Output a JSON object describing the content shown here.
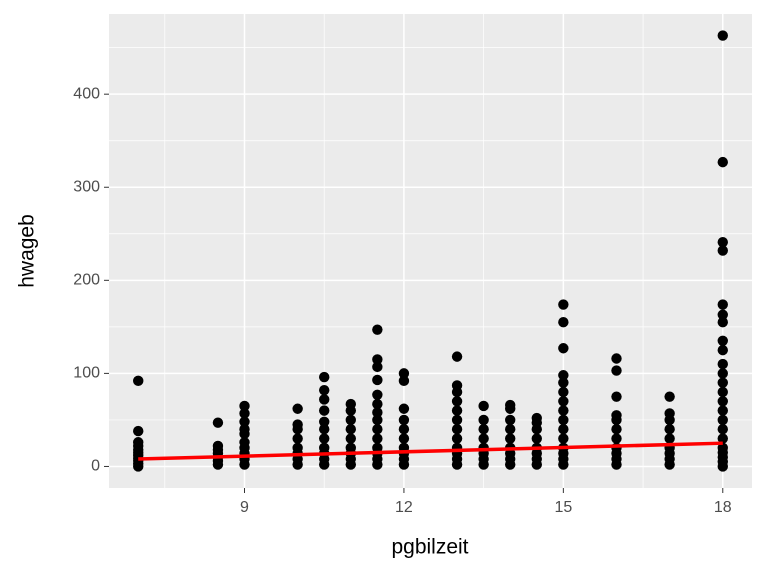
{
  "chart_data": {
    "type": "scatter",
    "x_label": "pgbilzeit",
    "y_label": "hwageb",
    "x": [
      7,
      7,
      7,
      7,
      7,
      7,
      7,
      7,
      7,
      7,
      7,
      8.5,
      8.5,
      8.5,
      8.5,
      8.5,
      8.5,
      8.5,
      9,
      9,
      9,
      9,
      9,
      9,
      9,
      9,
      9,
      9,
      10,
      10,
      10,
      10,
      10,
      10,
      10,
      10,
      10.5,
      10.5,
      10.5,
      10.5,
      10.5,
      10.5,
      10.5,
      10.5,
      10.5,
      10.5,
      10.5,
      11,
      11,
      11,
      11,
      11,
      11,
      11,
      11,
      11,
      11.5,
      11.5,
      11.5,
      11.5,
      11.5,
      11.5,
      11.5,
      11.5,
      11.5,
      11.5,
      11.5,
      11.5,
      11.5,
      11.5,
      12,
      12,
      12,
      12,
      12,
      12,
      12,
      12,
      12,
      12,
      13,
      13,
      13,
      13,
      13,
      13,
      13,
      13,
      13,
      13,
      13,
      13,
      13.5,
      13.5,
      13.5,
      13.5,
      13.5,
      13.5,
      13.5,
      13.5,
      14,
      14,
      14,
      14,
      14,
      14,
      14,
      14,
      14,
      14.5,
      14.5,
      14.5,
      14.5,
      14.5,
      14.5,
      14.5,
      14.5,
      15,
      15,
      15,
      15,
      15,
      15,
      15,
      15,
      15,
      15,
      15,
      15,
      15,
      15,
      15,
      16,
      16,
      16,
      16,
      16,
      16,
      16,
      16,
      16,
      16,
      16,
      17,
      17,
      17,
      17,
      17,
      17,
      17,
      17,
      17,
      18,
      18,
      18,
      18,
      18,
      18,
      18,
      18,
      18,
      18,
      18,
      18,
      18,
      18,
      18,
      18,
      18,
      18,
      18,
      18,
      18,
      18,
      18
    ],
    "values": [
      0,
      3,
      6,
      9,
      12,
      15,
      18,
      22,
      26,
      38,
      92,
      2,
      6,
      10,
      14,
      18,
      22,
      47,
      2,
      8,
      14,
      20,
      26,
      35,
      40,
      48,
      57,
      65,
      2,
      8,
      14,
      20,
      30,
      40,
      45,
      62,
      2,
      8,
      14,
      20,
      30,
      40,
      48,
      60,
      72,
      82,
      96,
      2,
      8,
      14,
      20,
      30,
      40,
      50,
      60,
      67,
      2,
      8,
      14,
      20,
      30,
      40,
      50,
      58,
      67,
      77,
      93,
      107,
      115,
      147,
      2,
      8,
      14,
      20,
      30,
      40,
      50,
      62,
      92,
      100,
      2,
      8,
      14,
      20,
      30,
      40,
      50,
      60,
      70,
      80,
      87,
      118,
      2,
      8,
      14,
      20,
      30,
      40,
      50,
      65,
      2,
      8,
      14,
      20,
      30,
      40,
      50,
      62,
      66,
      2,
      8,
      14,
      20,
      30,
      40,
      47,
      52,
      2,
      8,
      14,
      20,
      30,
      40,
      50,
      60,
      70,
      80,
      90,
      98,
      127,
      155,
      174,
      2,
      8,
      14,
      20,
      30,
      40,
      50,
      55,
      75,
      103,
      116,
      2,
      8,
      14,
      20,
      30,
      40,
      50,
      57,
      75,
      0,
      5,
      10,
      15,
      20,
      30,
      40,
      50,
      60,
      70,
      80,
      90,
      100,
      110,
      125,
      135,
      155,
      163,
      174,
      232,
      241,
      327,
      463
    ],
    "color": "#000000",
    "trend": {
      "x": [
        7,
        18
      ],
      "values": [
        8,
        25
      ],
      "color": "#ff0000"
    },
    "xlim": [
      6.45,
      18.55
    ],
    "xticks": [
      9,
      12,
      15,
      18
    ],
    "xminor": [
      7.5,
      10.5,
      13.5,
      16.5
    ],
    "ylim": [
      -23.15,
      486.15
    ],
    "yticks": [
      0,
      100,
      200,
      300,
      400
    ],
    "yminor": [
      50,
      150,
      250,
      350,
      450
    ],
    "grid": true
  }
}
